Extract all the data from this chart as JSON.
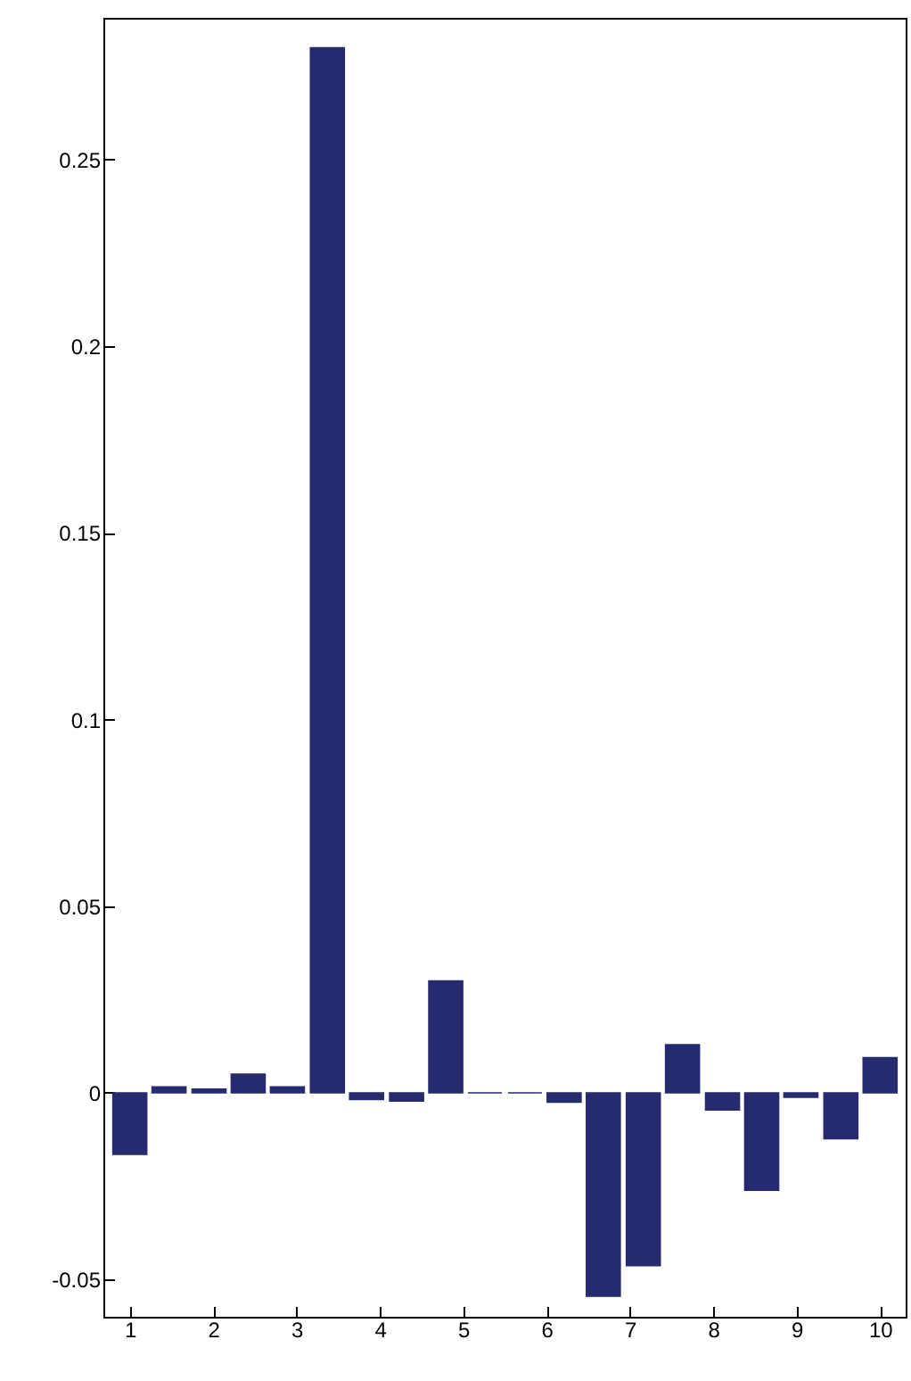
{
  "chart_data": {
    "type": "bar",
    "x": [
      1,
      1.47,
      1.95,
      2.42,
      2.89,
      3.37,
      3.84,
      4.32,
      4.79,
      5.26,
      5.74,
      6.21,
      6.68,
      7.16,
      7.63,
      8.11,
      8.58,
      9.05,
      9.53,
      10
    ],
    "values": [
      -0.0165,
      0.0016,
      0.001,
      0.005,
      0.0016,
      0.28,
      -0.0018,
      -0.0022,
      0.03,
      0,
      0,
      -0.0025,
      -0.0545,
      -0.0463,
      0.0129,
      -0.0046,
      -0.0261,
      -0.0012,
      -0.0123,
      0.0094
    ],
    "color": "#262a6e",
    "xlim": [
      0.79,
      10.2
    ],
    "xticks": [
      1,
      2,
      3,
      4,
      5,
      6,
      7,
      8,
      9,
      10
    ],
    "ylim": [
      -0.06,
      0.288
    ],
    "yticks": [
      -0.05,
      0,
      0.05,
      0.1,
      0.15,
      0.2,
      0.25
    ],
    "grid": false
  }
}
